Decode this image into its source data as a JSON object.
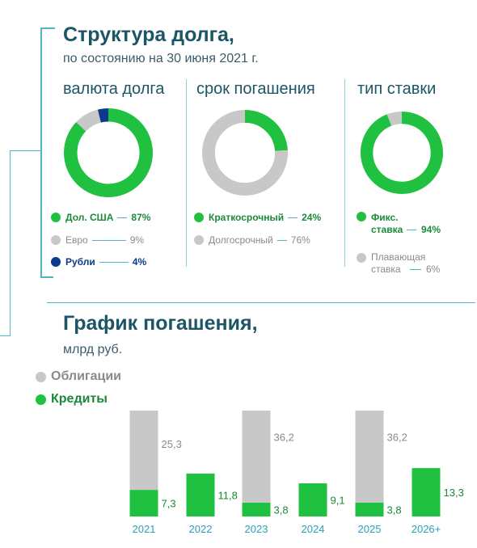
{
  "structure": {
    "title": "Структура долга,",
    "subtitle": "по состоянию на 30 июня 2021 г.",
    "columns": [
      {
        "heading": "валюта долга",
        "slices": [
          {
            "label": "Дол. США",
            "value": 87,
            "display": "87%",
            "color": "#20c040"
          },
          {
            "label": "Евро",
            "value": 9,
            "display": "9%",
            "color": "#c8c8c8"
          },
          {
            "label": "Рубли",
            "value": 4,
            "display": "4%",
            "color": "#0a3a8c"
          }
        ]
      },
      {
        "heading": "срок погашения",
        "slices": [
          {
            "label": "Краткосрочный",
            "value": 24,
            "display": "24%",
            "color": "#20c040"
          },
          {
            "label": "Долгосрочный",
            "value": 76,
            "display": "76%",
            "color": "#c8c8c8"
          }
        ]
      },
      {
        "heading": "тип ставки",
        "slices": [
          {
            "label_line1": "Фикс.",
            "label_line2": "ставка",
            "value": 94,
            "display": "94%",
            "color": "#20c040"
          },
          {
            "label_line1": "Плавающая",
            "label_line2": "ставка",
            "value": 6,
            "display": "6%",
            "color": "#c8c8c8"
          }
        ]
      }
    ]
  },
  "repayment": {
    "title": "График погашения,",
    "subtitle": "млрд руб."
  },
  "chart_data": {
    "type": "bar",
    "stacked": true,
    "categories": [
      "2021",
      "2022",
      "2023",
      "2024",
      "2025",
      "2026+"
    ],
    "series": [
      {
        "name": "Облигации",
        "color": "#c8c8c8",
        "values": [
          25.3,
          0,
          36.2,
          0,
          36.2,
          0
        ],
        "labels": [
          "25,3",
          "",
          "36,2",
          "",
          "36,2",
          ""
        ]
      },
      {
        "name": "Кредиты",
        "color": "#20c040",
        "values": [
          7.3,
          11.8,
          3.8,
          9.1,
          3.8,
          13.3
        ],
        "labels": [
          "7,3",
          "11,8",
          "3,8",
          "9,1",
          "3,8",
          "13,3"
        ]
      }
    ],
    "colors": {
      "bonds_label": "#8a8a8a",
      "loans_label": "#1a8a3a",
      "tick": "#2aa0b8"
    }
  }
}
